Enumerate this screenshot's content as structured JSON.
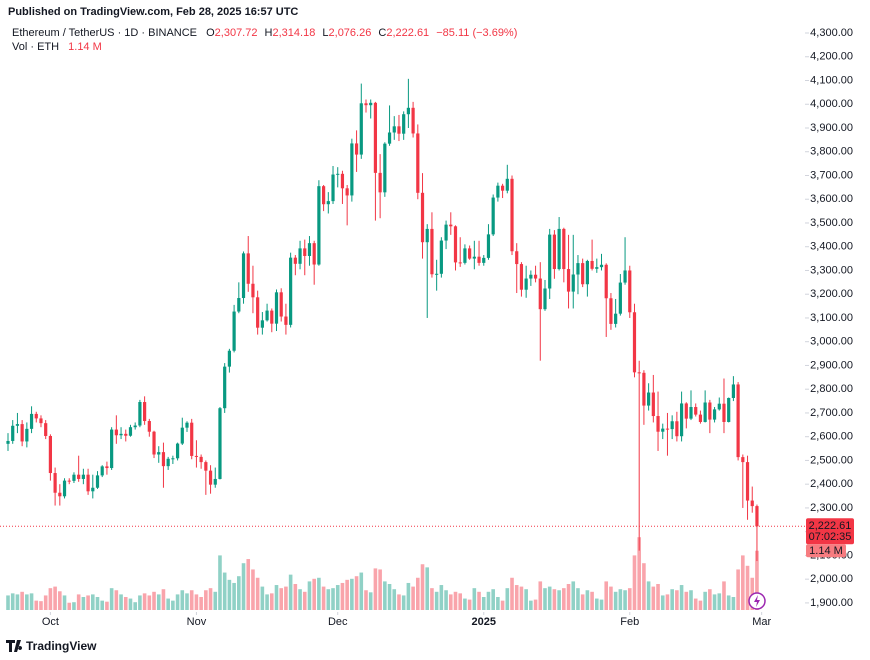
{
  "published": "Published on TradingView.com, Feb 28, 2025 16:57 UTC",
  "footer": "TradingView",
  "chart_data": {
    "type": "candlestick",
    "symbol": "Ethereum / TetherUS · 1D · BINANCE",
    "legend_keys": [
      "O",
      "H",
      "L",
      "C"
    ],
    "legend": {
      "open": "2,307.72",
      "high": "2,314.18",
      "low": "2,076.26",
      "close": "2,222.61",
      "change": "−85.11 (−3.69%)"
    },
    "volume_title": "Vol · ETH",
    "volume_label": "1.14 M",
    "countdown": "07:02:35",
    "up_color": "#089981",
    "down_color": "#f23645",
    "xlim": [
      -1.7,
      169.2
    ],
    "xticks": [
      {
        "value": 9,
        "label": "Oct"
      },
      {
        "value": 40,
        "label": "Nov"
      },
      {
        "value": 70,
        "label": "Dec"
      },
      {
        "value": 101,
        "label": "2025"
      },
      {
        "value": 132,
        "label": "Feb"
      },
      {
        "value": 160,
        "label": "Mar"
      }
    ],
    "ylim": [
      1807,
      4439
    ],
    "yticks": [
      {
        "value": 1900,
        "label": "1,900.00"
      },
      {
        "value": 2000,
        "label": "2,000.00"
      },
      {
        "value": 2100,
        "label": "2,100.00"
      },
      {
        "value": 2200,
        "label": "2,200.00"
      },
      {
        "value": 2300,
        "label": "2,300.00"
      },
      {
        "value": 2400,
        "label": "2,400.00"
      },
      {
        "value": 2500,
        "label": "2,500.00"
      },
      {
        "value": 2600,
        "label": "2,600.00"
      },
      {
        "value": 2700,
        "label": "2,700.00"
      },
      {
        "value": 2800,
        "label": "2,800.00"
      },
      {
        "value": 2900,
        "label": "2,900.00"
      },
      {
        "value": 3000,
        "label": "3,000.00"
      },
      {
        "value": 3100,
        "label": "3,100.00"
      },
      {
        "value": 3200,
        "label": "3,200.00"
      },
      {
        "value": 3300,
        "label": "3,300.00"
      },
      {
        "value": 3400,
        "label": "3,400.00"
      },
      {
        "value": 3500,
        "label": "3,500.00"
      },
      {
        "value": 3600,
        "label": "3,600.00"
      },
      {
        "value": 3700,
        "label": "3,700.00"
      },
      {
        "value": 3800,
        "label": "3,800.00"
      },
      {
        "value": 3900,
        "label": "3,900.00"
      },
      {
        "value": 4000,
        "label": "4,000.00"
      },
      {
        "value": 4100,
        "label": "4,100.00"
      },
      {
        "value": 4200,
        "label": "4,200.00"
      },
      {
        "value": 4300,
        "label": "4,300.00"
      }
    ],
    "grid": false,
    "open": [
      2570,
      2582,
      2646,
      2653,
      2580,
      2633,
      2696,
      2677,
      2657,
      2603,
      2447,
      2364,
      2349,
      2415,
      2414,
      2440,
      2422,
      2440,
      2370,
      2385,
      2437,
      2475,
      2468,
      2630,
      2606,
      2612,
      2604,
      2640,
      2647,
      2746,
      2666,
      2621,
      2525,
      2535,
      2476,
      2507,
      2509,
      2571,
      2638,
      2659,
      2519,
      2515,
      2493,
      2457,
      2398,
      2422,
      2720,
      2895,
      2962,
      3127,
      3184,
      3372,
      3244,
      3187,
      3059,
      3090,
      3131,
      3076,
      3208,
      3106,
      3071,
      3354,
      3328,
      3393,
      3361,
      3415,
      3325,
      3655,
      3579,
      3592,
      3704,
      3707,
      3646,
      3616,
      3835,
      3788,
      4004,
      3996,
      4006,
      3711,
      3629,
      3834,
      3881,
      3907,
      3876,
      3958,
      3985,
      3877,
      3627,
      3419,
      3475,
      3284,
      3286,
      3426,
      3493,
      3486,
      3334,
      3332,
      3393,
      3350,
      3358,
      3332,
      3353,
      3452,
      3607,
      3657,
      3636,
      3686,
      3381,
      3327,
      3219,
      3266,
      3282,
      3266,
      3137,
      3224,
      3451,
      3306,
      3475,
      3306,
      3211,
      3283,
      3331,
      3242,
      3340,
      3307,
      3314,
      3324,
      3183,
      3075,
      3118,
      3249,
      3300,
      3124,
      2871,
      2869,
      2731,
      2786,
      2687,
      2621,
      2634,
      2632,
      2665,
      2602,
      2740,
      2676,
      2725,
      2693,
      2662,
      2744,
      2672,
      2715,
      2739,
      2662,
      2763,
      2820,
      2514,
      2493,
      2331,
      2307.72
    ],
    "high": [
      2615,
      2670,
      2700,
      2670,
      2660,
      2728,
      2705,
      2690,
      2670,
      2610,
      2470,
      2400,
      2425,
      2425,
      2450,
      2520,
      2465,
      2465,
      2440,
      2455,
      2480,
      2495,
      2640,
      2690,
      2640,
      2630,
      2650,
      2660,
      2755,
      2770,
      2675,
      2625,
      2560,
      2575,
      2515,
      2520,
      2575,
      2680,
      2665,
      2675,
      2585,
      2525,
      2500,
      2480,
      2470,
      2725,
      2910,
      2970,
      3155,
      3250,
      3380,
      3445,
      3320,
      3215,
      3125,
      3160,
      3140,
      3220,
      3225,
      3160,
      3375,
      3365,
      3425,
      3430,
      3445,
      3425,
      3680,
      3660,
      3630,
      3740,
      3735,
      3720,
      3660,
      3855,
      3890,
      4087,
      4020,
      4020,
      4010,
      3790,
      3840,
      3995,
      3950,
      3955,
      3970,
      4107,
      4010,
      3915,
      3710,
      3495,
      3545,
      3345,
      3440,
      3510,
      3545,
      3490,
      3440,
      3410,
      3405,
      3425,
      3425,
      3365,
      3495,
      3620,
      3670,
      3665,
      3745,
      3700,
      3415,
      3335,
      3320,
      3300,
      3320,
      3335,
      3260,
      3475,
      3470,
      3525,
      3480,
      3450,
      3450,
      3365,
      3350,
      3345,
      3430,
      3350,
      3370,
      3330,
      3205,
      3180,
      3285,
      3440,
      3320,
      3160,
      2920,
      2880,
      2825,
      2860,
      2790,
      2655,
      2700,
      2690,
      2705,
      2790,
      2745,
      2795,
      2740,
      2710,
      2795,
      2755,
      2725,
      2765,
      2845,
      2765,
      2855,
      2830,
      2525,
      2520,
      2390,
      2314.18
    ],
    "low": [
      2540,
      2570,
      2615,
      2560,
      2555,
      2615,
      2660,
      2640,
      2590,
      2415,
      2310,
      2310,
      2340,
      2400,
      2405,
      2410,
      2400,
      2355,
      2340,
      2380,
      2430,
      2440,
      2460,
      2570,
      2590,
      2580,
      2600,
      2630,
      2640,
      2650,
      2600,
      2510,
      2490,
      2385,
      2460,
      2485,
      2500,
      2565,
      2620,
      2505,
      2470,
      2465,
      2355,
      2360,
      2385,
      2420,
      2700,
      2870,
      2955,
      3120,
      3160,
      3210,
      3120,
      3030,
      3030,
      3085,
      3040,
      3045,
      3085,
      3030,
      3060,
      3280,
      3305,
      3280,
      3320,
      3240,
      3320,
      3550,
      3540,
      3580,
      3650,
      3580,
      3490,
      3590,
      3715,
      3770,
      3965,
      3940,
      3510,
      3520,
      3610,
      3825,
      3850,
      3845,
      3850,
      3900,
      3860,
      3600,
      3350,
      3100,
      3270,
      3215,
      3270,
      3390,
      3450,
      3300,
      3315,
      3325,
      3345,
      3305,
      3320,
      3320,
      3345,
      3445,
      3590,
      3605,
      3625,
      3365,
      3205,
      3190,
      3185,
      3235,
      3250,
      2920,
      3130,
      3180,
      3265,
      3300,
      3250,
      3140,
      3140,
      3200,
      3230,
      3190,
      3300,
      3290,
      3300,
      3020,
      3050,
      3060,
      3110,
      3240,
      3100,
      2850,
      2120,
      2650,
      2710,
      2660,
      2540,
      2590,
      2520,
      2590,
      2580,
      2580,
      2635,
      2670,
      2685,
      2655,
      2660,
      2615,
      2660,
      2710,
      2615,
      2660,
      2750,
      2500,
      2300,
      2250,
      2280,
      2076.26
    ],
    "close": [
      2582,
      2646,
      2653,
      2580,
      2633,
      2696,
      2677,
      2657,
      2603,
      2447,
      2364,
      2349,
      2415,
      2414,
      2440,
      2422,
      2440,
      2370,
      2385,
      2437,
      2475,
      2468,
      2630,
      2606,
      2612,
      2604,
      2640,
      2647,
      2746,
      2666,
      2621,
      2525,
      2535,
      2476,
      2507,
      2509,
      2571,
      2638,
      2659,
      2519,
      2515,
      2493,
      2457,
      2398,
      2422,
      2720,
      2895,
      2962,
      3127,
      3184,
      3372,
      3244,
      3187,
      3059,
      3090,
      3131,
      3076,
      3208,
      3106,
      3071,
      3354,
      3328,
      3393,
      3361,
      3415,
      3325,
      3655,
      3579,
      3592,
      3704,
      3707,
      3646,
      3616,
      3835,
      3788,
      4004,
      3996,
      4006,
      3711,
      3629,
      3834,
      3881,
      3907,
      3876,
      3958,
      3985,
      3877,
      3627,
      3419,
      3475,
      3284,
      3286,
      3426,
      3493,
      3486,
      3334,
      3332,
      3393,
      3350,
      3358,
      3332,
      3353,
      3452,
      3607,
      3657,
      3636,
      3686,
      3381,
      3327,
      3219,
      3266,
      3282,
      3266,
      3137,
      3224,
      3451,
      3306,
      3475,
      3306,
      3211,
      3283,
      3331,
      3242,
      3340,
      3307,
      3314,
      3324,
      3183,
      3075,
      3118,
      3249,
      3300,
      3124,
      2871,
      2869,
      2731,
      2786,
      2687,
      2621,
      2634,
      2632,
      2665,
      2602,
      2740,
      2676,
      2725,
      2693,
      2662,
      2744,
      2672,
      2715,
      2739,
      2662,
      2763,
      2820,
      2514,
      2493,
      2331,
      2307.72,
      2222.61
    ],
    "volume": [
      0.28,
      0.32,
      0.3,
      0.35,
      0.3,
      0.32,
      0.18,
      0.17,
      0.28,
      0.42,
      0.45,
      0.36,
      0.28,
      0.14,
      0.15,
      0.3,
      0.25,
      0.28,
      0.3,
      0.25,
      0.18,
      0.16,
      0.42,
      0.38,
      0.3,
      0.25,
      0.22,
      0.15,
      0.28,
      0.32,
      0.28,
      0.35,
      0.3,
      0.4,
      0.22,
      0.18,
      0.3,
      0.38,
      0.32,
      0.38,
      0.3,
      0.25,
      0.38,
      0.42,
      0.35,
      1.05,
      0.72,
      0.58,
      0.52,
      0.65,
      0.9,
      0.98,
      0.78,
      0.62,
      0.45,
      0.3,
      0.32,
      0.48,
      0.42,
      0.45,
      0.68,
      0.5,
      0.4,
      0.35,
      0.55,
      0.6,
      0.62,
      0.45,
      0.4,
      0.42,
      0.48,
      0.52,
      0.58,
      0.6,
      0.65,
      0.72,
      0.38,
      0.34,
      0.8,
      0.78,
      0.55,
      0.5,
      0.4,
      0.3,
      0.28,
      0.52,
      0.45,
      0.62,
      0.88,
      0.82,
      0.42,
      0.35,
      0.48,
      0.38,
      0.3,
      0.35,
      0.32,
      0.22,
      0.2,
      0.42,
      0.35,
      0.25,
      0.35,
      0.4,
      0.25,
      0.18,
      0.42,
      0.62,
      0.48,
      0.45,
      0.4,
      0.18,
      0.2,
      0.55,
      0.42,
      0.45,
      0.4,
      0.38,
      0.42,
      0.5,
      0.55,
      0.42,
      0.3,
      0.38,
      0.35,
      0.22,
      0.2,
      0.55,
      0.45,
      0.35,
      0.4,
      0.38,
      0.42,
      1.05,
      1.4,
      0.9,
      0.55,
      0.45,
      0.5,
      0.28,
      0.3,
      0.4,
      0.38,
      0.48,
      0.35,
      0.38,
      0.22,
      0.18,
      0.35,
      0.4,
      0.3,
      0.32,
      0.55,
      0.28,
      0.25,
      0.78,
      1.05,
      0.85,
      0.62,
      1.14
    ]
  }
}
